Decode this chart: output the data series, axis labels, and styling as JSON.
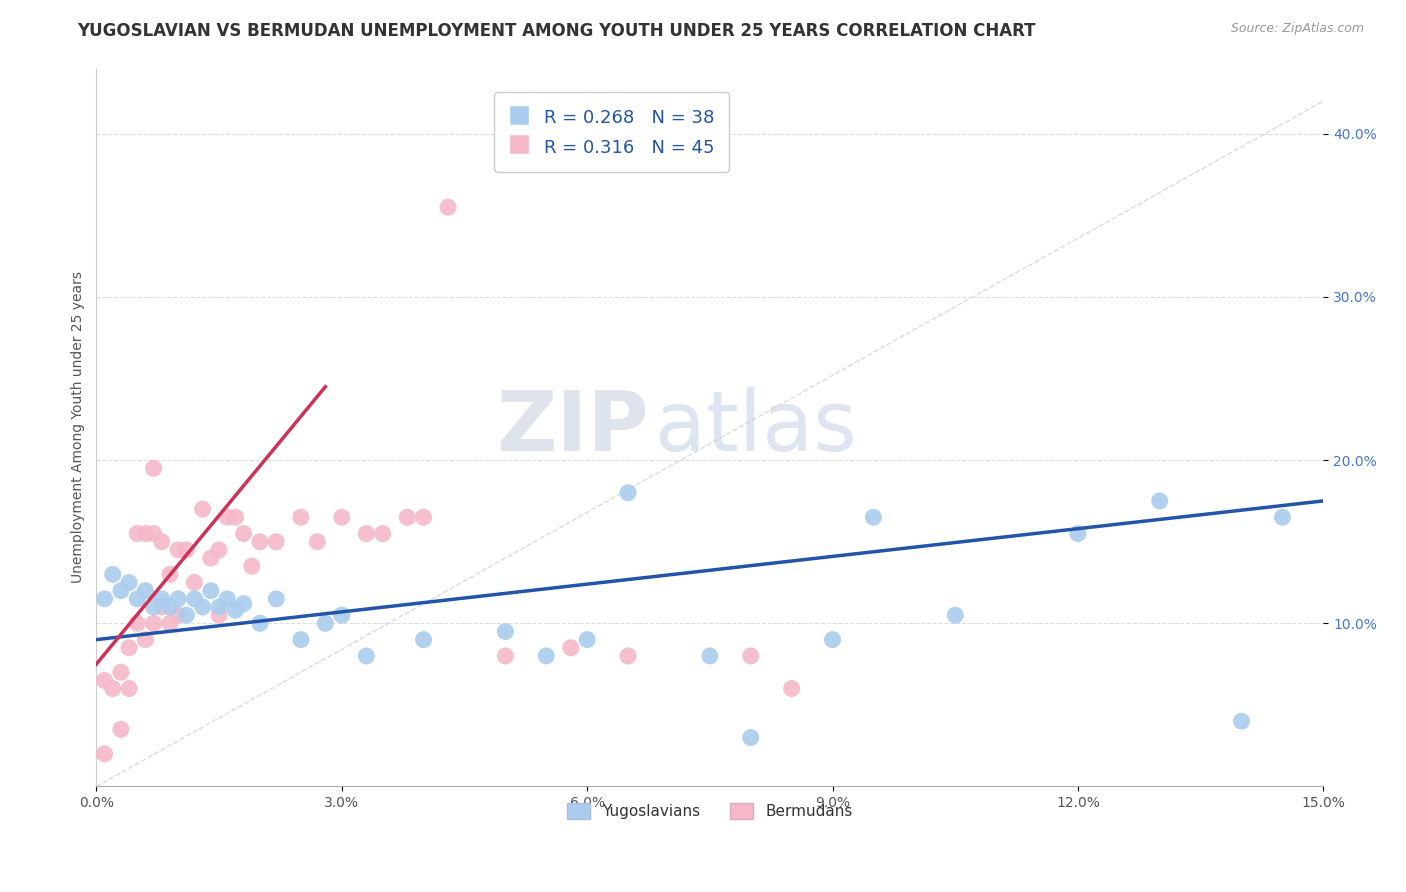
{
  "title": "YUGOSLAVIAN VS BERMUDAN UNEMPLOYMENT AMONG YOUTH UNDER 25 YEARS CORRELATION CHART",
  "source_text": "Source: ZipAtlas.com",
  "ylabel": "Unemployment Among Youth under 25 years",
  "xlim": [
    0.0,
    0.15
  ],
  "ylim": [
    0.0,
    0.44
  ],
  "xticks": [
    0.0,
    0.03,
    0.06,
    0.09,
    0.12,
    0.15
  ],
  "xticklabels": [
    "0.0%",
    "3.0%",
    "6.0%",
    "9.0%",
    "12.0%",
    "15.0%"
  ],
  "yticks": [
    0.1,
    0.2,
    0.3,
    0.4
  ],
  "yticklabels": [
    "10.0%",
    "20.0%",
    "30.0%",
    "40.0%"
  ],
  "legend_labels": [
    "Yugoslavians",
    "Bermudans"
  ],
  "legend_R": [
    0.268,
    0.316
  ],
  "legend_N": [
    38,
    45
  ],
  "blue_scatter_color": "#aaccee",
  "pink_scatter_color": "#f4b8c8",
  "blue_line_color": "#2255aa",
  "pink_line_color": "#cc3355",
  "diag_line_color": "#cccccc",
  "background_color": "#ffffff",
  "grid_color": "#dddddd",
  "watermark_zip": "ZIP",
  "watermark_atlas": "atlas",
  "title_fontsize": 12,
  "axis_label_fontsize": 10,
  "tick_fontsize": 10,
  "yug_x": [
    0.001,
    0.002,
    0.003,
    0.004,
    0.005,
    0.006,
    0.007,
    0.008,
    0.009,
    0.01,
    0.011,
    0.012,
    0.013,
    0.014,
    0.015,
    0.016,
    0.017,
    0.018,
    0.02,
    0.022,
    0.025,
    0.028,
    0.03,
    0.033,
    0.04,
    0.05,
    0.055,
    0.06,
    0.065,
    0.075,
    0.08,
    0.09,
    0.095,
    0.105,
    0.12,
    0.13,
    0.14,
    0.145
  ],
  "yug_y": [
    0.115,
    0.13,
    0.12,
    0.125,
    0.115,
    0.12,
    0.11,
    0.115,
    0.11,
    0.115,
    0.105,
    0.115,
    0.11,
    0.12,
    0.11,
    0.115,
    0.108,
    0.112,
    0.1,
    0.115,
    0.09,
    0.1,
    0.105,
    0.08,
    0.09,
    0.095,
    0.08,
    0.09,
    0.18,
    0.08,
    0.03,
    0.09,
    0.165,
    0.105,
    0.155,
    0.175,
    0.04,
    0.165
  ],
  "berm_x": [
    0.001,
    0.001,
    0.002,
    0.003,
    0.003,
    0.004,
    0.004,
    0.005,
    0.005,
    0.006,
    0.006,
    0.007,
    0.007,
    0.007,
    0.008,
    0.008,
    0.009,
    0.009,
    0.01,
    0.01,
    0.011,
    0.012,
    0.013,
    0.014,
    0.015,
    0.015,
    0.016,
    0.017,
    0.018,
    0.019,
    0.02,
    0.022,
    0.025,
    0.027,
    0.03,
    0.033,
    0.035,
    0.038,
    0.04,
    0.043,
    0.05,
    0.058,
    0.065,
    0.08,
    0.085
  ],
  "berm_y": [
    0.065,
    0.02,
    0.06,
    0.07,
    0.035,
    0.085,
    0.06,
    0.155,
    0.1,
    0.155,
    0.09,
    0.195,
    0.155,
    0.1,
    0.15,
    0.11,
    0.13,
    0.1,
    0.145,
    0.105,
    0.145,
    0.125,
    0.17,
    0.14,
    0.145,
    0.105,
    0.165,
    0.165,
    0.155,
    0.135,
    0.15,
    0.15,
    0.165,
    0.15,
    0.165,
    0.155,
    0.155,
    0.165,
    0.165,
    0.355,
    0.08,
    0.085,
    0.08,
    0.08,
    0.06
  ],
  "blue_trendline_x": [
    0.0,
    0.15
  ],
  "blue_trendline_y": [
    0.09,
    0.175
  ],
  "pink_trendline_x": [
    0.0,
    0.028
  ],
  "pink_trendline_y": [
    0.075,
    0.245
  ]
}
